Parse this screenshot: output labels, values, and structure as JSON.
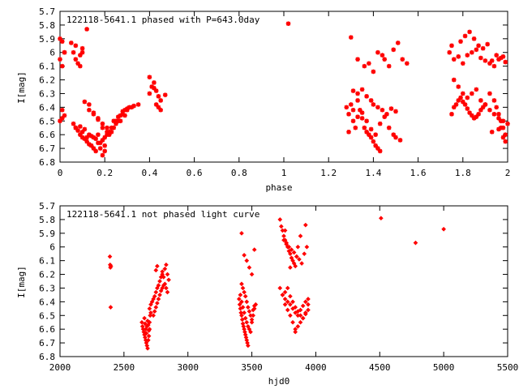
{
  "chart_data": [
    {
      "type": "scatter",
      "title": "122118-5641.1 phased with P=643.0day",
      "xlabel": "phase",
      "ylabel": "I[mag]",
      "xlim": [
        0,
        2
      ],
      "ylim": [
        5.7,
        6.8
      ],
      "y_reversed": true,
      "x_ticks": [
        "0",
        "0.2",
        "0.4",
        "0.6",
        "0.8",
        "1",
        "1.2",
        "1.4",
        "1.6",
        "1.8",
        "2"
      ],
      "y_ticks": [
        "5.7",
        "5.8",
        "5.9",
        "6",
        "6.1",
        "6.2",
        "6.3",
        "6.4",
        "6.5",
        "6.6",
        "6.7",
        "6.8"
      ],
      "marker": "star",
      "color": "#ff0000",
      "series": [
        {
          "x": [
            0.0,
            0.01,
            0.02,
            0.0,
            0.01,
            0.02,
            0.01,
            0.02,
            0.0,
            0.01,
            0.05,
            0.06,
            0.07,
            0.08,
            0.09,
            0.1,
            0.07,
            0.09,
            0.12,
            0.1,
            0.06,
            0.07,
            0.08,
            0.09,
            0.1,
            0.11,
            0.12,
            0.13,
            0.14,
            0.15,
            0.16,
            0.17,
            0.18,
            0.19,
            0.2,
            0.07,
            0.09,
            0.11,
            0.13,
            0.15,
            0.17,
            0.19,
            0.21,
            0.23,
            0.25,
            0.27,
            0.29,
            0.1,
            0.12,
            0.14,
            0.16,
            0.18,
            0.2,
            0.22,
            0.24,
            0.26,
            0.28,
            0.3,
            0.32,
            0.11,
            0.13,
            0.15,
            0.17,
            0.19,
            0.21,
            0.2,
            0.22,
            0.24,
            0.26,
            0.28,
            0.3,
            0.13,
            0.15,
            0.17,
            0.19,
            0.21,
            0.23,
            0.25,
            0.27,
            0.29,
            0.31,
            0.33,
            0.35,
            0.4,
            0.41,
            0.42,
            0.43,
            0.44,
            0.45,
            0.4,
            0.42,
            0.44,
            0.47,
            0.43,
            0.45,
            1.02,
            1.28,
            1.29,
            1.3,
            1.31,
            1.32,
            1.33,
            1.34,
            1.35,
            1.36,
            1.37,
            1.38,
            1.39,
            1.4,
            1.41,
            1.42,
            1.43,
            1.29,
            1.31,
            1.33,
            1.35,
            1.37,
            1.39,
            1.41,
            1.43,
            1.45,
            1.47,
            1.49,
            1.5,
            1.52,
            1.31,
            1.33,
            1.35,
            1.37,
            1.39,
            1.4,
            1.42,
            1.44,
            1.46,
            1.48,
            1.5,
            1.3,
            1.33,
            1.36,
            1.38,
            1.4,
            1.42,
            1.44,
            1.45,
            1.47,
            1.49,
            1.51,
            1.53,
            1.55,
            1.75,
            1.76,
            1.77,
            1.78,
            1.79,
            1.8,
            1.81,
            1.82,
            1.83,
            1.84,
            1.85,
            1.86,
            1.87,
            1.88,
            1.89,
            1.9,
            1.74,
            1.76,
            1.78,
            1.8,
            1.82,
            1.84,
            1.86,
            1.88,
            1.9,
            1.92,
            1.94,
            1.96,
            1.98,
            1.76,
            1.78,
            1.8,
            1.82,
            1.84,
            1.86,
            1.88,
            1.9,
            1.92,
            1.94,
            1.96,
            1.98,
            2.0,
            1.75,
            1.79,
            1.81,
            1.83,
            1.85,
            1.87,
            1.89,
            1.91,
            1.93,
            1.95,
            1.97,
            1.99,
            1.92,
            1.94,
            1.95,
            1.96,
            1.97,
            1.98,
            1.99,
            1.93,
            1.96,
            1.98,
            1.99,
            1.97
          ],
          "y": [
            5.9,
            5.92,
            6.0,
            6.05,
            6.1,
            6.0,
            6.42,
            6.46,
            6.5,
            6.48,
            5.93,
            6.0,
            6.05,
            6.08,
            6.02,
            5.97,
            5.95,
            6.1,
            5.83,
            6.0,
            6.52,
            6.55,
            6.57,
            6.6,
            6.62,
            6.63,
            6.65,
            6.67,
            6.68,
            6.7,
            6.72,
            6.66,
            6.7,
            6.75,
            6.72,
            6.55,
            6.54,
            6.56,
            6.6,
            6.62,
            6.6,
            6.64,
            6.58,
            6.55,
            6.52,
            6.5,
            6.46,
            6.58,
            6.62,
            6.61,
            6.63,
            6.66,
            6.68,
            6.6,
            6.55,
            6.5,
            6.45,
            6.42,
            6.4,
            6.36,
            6.42,
            6.45,
            6.48,
            6.52,
            6.55,
            6.62,
            6.58,
            6.5,
            6.47,
            6.43,
            6.41,
            6.38,
            6.44,
            6.49,
            6.55,
            6.6,
            6.58,
            6.5,
            6.46,
            6.42,
            6.4,
            6.39,
            6.38,
            6.3,
            6.25,
            6.22,
            6.28,
            6.32,
            6.35,
            6.18,
            6.26,
            6.4,
            6.31,
            6.38,
            6.42,
            5.79,
            6.4,
            6.45,
            6.38,
            6.5,
            6.55,
            6.47,
            6.42,
            6.48,
            6.55,
            6.58,
            6.6,
            6.62,
            6.65,
            6.68,
            6.7,
            6.72,
            6.58,
            6.42,
            6.35,
            6.44,
            6.5,
            6.56,
            6.6,
            6.52,
            6.47,
            6.55,
            6.6,
            6.62,
            6.64,
            6.28,
            6.3,
            6.27,
            6.32,
            6.35,
            6.38,
            6.4,
            6.42,
            6.45,
            6.41,
            6.43,
            5.89,
            6.05,
            6.1,
            6.08,
            6.14,
            6.0,
            6.02,
            6.05,
            6.1,
            5.98,
            5.93,
            6.05,
            6.08,
            6.45,
            6.4,
            6.38,
            6.35,
            6.33,
            6.36,
            6.38,
            6.41,
            6.44,
            6.46,
            6.48,
            6.47,
            6.45,
            6.42,
            6.4,
            6.38,
            6.0,
            6.05,
            6.03,
            6.08,
            6.02,
            6.0,
            5.98,
            6.04,
            6.06,
            6.08,
            6.1,
            6.05,
            6.03,
            6.2,
            6.25,
            6.3,
            6.33,
            6.3,
            6.27,
            6.35,
            6.38,
            6.42,
            6.45,
            6.48,
            6.5,
            6.52,
            5.95,
            5.92,
            5.88,
            5.85,
            5.9,
            5.95,
            5.97,
            5.94,
            6.06,
            6.02,
            6.04,
            6.07,
            6.3,
            6.35,
            6.4,
            6.45,
            6.5,
            6.55,
            6.6,
            6.58,
            6.56,
            6.62,
            6.65,
            6.55
          ]
        }
      ]
    },
    {
      "type": "scatter",
      "title": "122118-5641.1 not phased light curve",
      "xlabel": "hjd0",
      "ylabel": "I[mag]",
      "xlim": [
        2000,
        5500
      ],
      "ylim": [
        5.7,
        6.8
      ],
      "y_reversed": true,
      "x_ticks": [
        "2000",
        "2500",
        "3000",
        "3500",
        "4000",
        "4500",
        "5000",
        "5500"
      ],
      "y_ticks": [
        "5.7",
        "5.8",
        "5.9",
        "6",
        "6.1",
        "6.2",
        "6.3",
        "6.4",
        "6.5",
        "6.6",
        "6.7",
        "6.8"
      ],
      "marker": "diamond",
      "color": "#ff0000",
      "series": [
        {
          "x": [
            2390,
            2392,
            2394,
            2396,
            2398,
            2640,
            2645,
            2650,
            2655,
            2660,
            2665,
            2670,
            2675,
            2680,
            2685,
            2690,
            2695,
            2700,
            2660,
            2665,
            2670,
            2675,
            2680,
            2685,
            2690,
            2695,
            2700,
            2705,
            2710,
            2700,
            2710,
            2720,
            2730,
            2740,
            2750,
            2760,
            2770,
            2780,
            2790,
            2800,
            2730,
            2740,
            2750,
            2760,
            2770,
            2780,
            2790,
            2800,
            2810,
            2820,
            2830,
            2840,
            2750,
            2760,
            2800,
            2810,
            2820,
            2830,
            2840,
            2850,
            3400,
            3405,
            3410,
            3415,
            3420,
            3425,
            3430,
            3435,
            3440,
            3445,
            3450,
            3455,
            3460,
            3465,
            3470,
            3410,
            3420,
            3430,
            3440,
            3450,
            3460,
            3470,
            3480,
            3490,
            3500,
            3510,
            3520,
            3530,
            3420,
            3430,
            3440,
            3450,
            3460,
            3470,
            3480,
            3490,
            3500,
            3510,
            3520,
            3420,
            3440,
            3460,
            3480,
            3500,
            3520,
            3720,
            3730,
            3740,
            3750,
            3760,
            3770,
            3780,
            3790,
            3800,
            3810,
            3820,
            3830,
            3840,
            3850,
            3860,
            3720,
            3740,
            3760,
            3780,
            3800,
            3820,
            3840,
            3860,
            3880,
            3900,
            3920,
            3940,
            3740,
            3760,
            3780,
            3800,
            3820,
            3840,
            3860,
            3880,
            3900,
            3920,
            3940,
            3750,
            3770,
            3790,
            3810,
            3830,
            3850,
            3870,
            3890,
            3910,
            3930,
            3760,
            3780,
            3800,
            3820,
            3840,
            3860,
            3880,
            3900,
            3920,
            3940,
            3760,
            3800,
            3840,
            3880,
            3920,
            4510,
            4780,
            5000
          ],
          "y": [
            6.07,
            6.13,
            6.15,
            6.44,
            6.14,
            6.55,
            6.58,
            6.6,
            6.62,
            6.64,
            6.66,
            6.68,
            6.7,
            6.72,
            6.74,
            6.68,
            6.65,
            6.6,
            6.52,
            6.56,
            6.6,
            6.63,
            6.58,
            6.54,
            6.57,
            6.61,
            6.55,
            6.5,
            6.48,
            6.45,
            6.42,
            6.4,
            6.38,
            6.36,
            6.33,
            6.3,
            6.28,
            6.25,
            6.22,
            6.2,
            6.5,
            6.47,
            6.44,
            6.41,
            6.38,
            6.35,
            6.32,
            6.3,
            6.28,
            6.27,
            6.3,
            6.33,
            6.17,
            6.14,
            6.18,
            6.22,
            6.16,
            6.13,
            6.2,
            6.24,
            6.38,
            6.42,
            6.45,
            6.48,
            6.5,
            6.53,
            6.56,
            6.58,
            6.6,
            6.62,
            6.64,
            6.66,
            6.68,
            6.7,
            6.72,
            6.35,
            6.4,
            6.44,
            6.48,
            6.52,
            6.55,
            6.58,
            6.6,
            6.62,
            6.55,
            6.5,
            6.45,
            6.42,
            6.27,
            6.3,
            6.33,
            6.36,
            6.4,
            6.44,
            6.47,
            6.5,
            6.53,
            6.46,
            6.43,
            5.9,
            6.06,
            6.1,
            6.15,
            6.2,
            6.02,
            5.8,
            5.85,
            5.88,
            5.92,
            5.95,
            5.98,
            6.0,
            6.03,
            6.05,
            6.08,
            6.1,
            6.12,
            6.14,
            6.07,
            6.0,
            6.3,
            6.35,
            6.38,
            6.4,
            6.42,
            6.45,
            6.48,
            6.5,
            6.46,
            6.43,
            6.4,
            6.38,
            6.35,
            6.33,
            6.3,
            6.36,
            6.4,
            6.44,
            6.47,
            6.5,
            6.52,
            6.48,
            6.42,
            5.95,
            5.97,
            6.0,
            6.02,
            6.04,
            6.07,
            6.09,
            6.12,
            6.05,
            6.0,
            6.42,
            6.46,
            6.5,
            6.55,
            6.6,
            6.58,
            6.55,
            6.52,
            6.49,
            6.46,
            5.88,
            6.15,
            6.62,
            5.92,
            5.84,
            5.79,
            5.97,
            5.87
          ]
        }
      ]
    }
  ],
  "colors": {
    "points": "#ff0000",
    "axes": "#000000",
    "background": "#ffffff"
  }
}
